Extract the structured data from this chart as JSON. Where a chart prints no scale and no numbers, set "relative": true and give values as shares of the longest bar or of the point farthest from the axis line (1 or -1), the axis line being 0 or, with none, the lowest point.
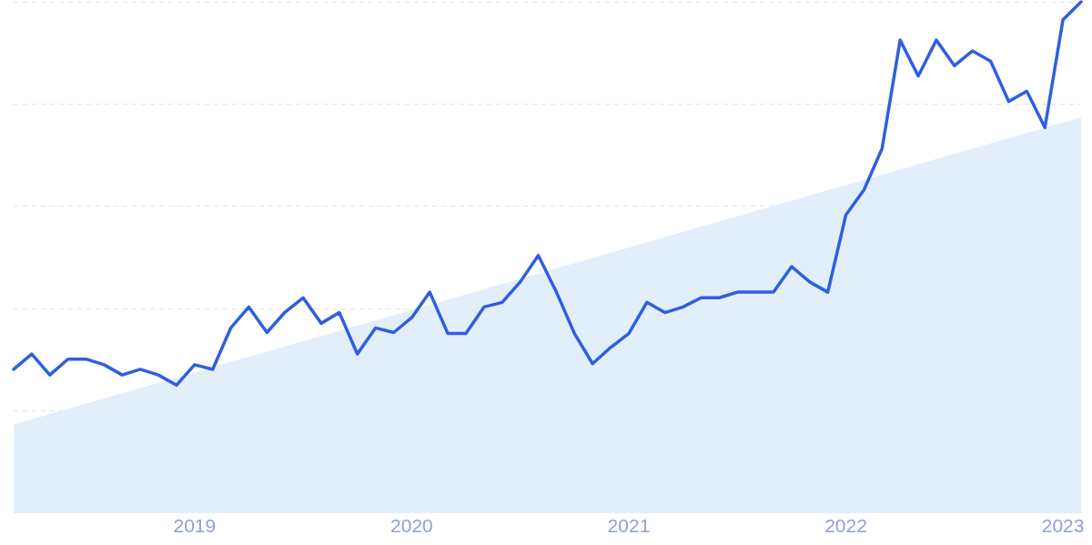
{
  "chart_data": {
    "type": "line",
    "relative": true,
    "grid": "y",
    "legend": false,
    "marker": "none",
    "line_style": "solid",
    "xlim": [
      "2018-03",
      "2023-02"
    ],
    "xticks": [
      "2019",
      "2020",
      "2021",
      "2022",
      "2023"
    ],
    "x": [
      "2018-03",
      "2018-04",
      "2018-05",
      "2018-06",
      "2018-07",
      "2018-08",
      "2018-09",
      "2018-10",
      "2018-11",
      "2018-12",
      "2019-01",
      "2019-02",
      "2019-03",
      "2019-04",
      "2019-05",
      "2019-06",
      "2019-07",
      "2019-08",
      "2019-09",
      "2019-10",
      "2019-11",
      "2019-12",
      "2020-01",
      "2020-02",
      "2020-03",
      "2020-04",
      "2020-05",
      "2020-06",
      "2020-07",
      "2020-08",
      "2020-09",
      "2020-10",
      "2020-11",
      "2020-12",
      "2021-01",
      "2021-02",
      "2021-03",
      "2021-04",
      "2021-05",
      "2021-06",
      "2021-07",
      "2021-08",
      "2021-09",
      "2021-10",
      "2021-11",
      "2021-12",
      "2022-01",
      "2022-02",
      "2022-03",
      "2022-04",
      "2022-05",
      "2022-06",
      "2022-07",
      "2022-08",
      "2022-09",
      "2022-10",
      "2022-11",
      "2022-12",
      "2023-01",
      "2023-02"
    ],
    "series": [
      {
        "type": "area",
        "color": "#e3eefb",
        "x": [
          "2018-03",
          "2023-02"
        ],
        "values": [
          0.173,
          0.774
        ]
      },
      {
        "type": "line",
        "color": "#2f5fe0",
        "values": [
          0.281,
          0.311,
          0.27,
          0.301,
          0.301,
          0.29,
          0.27,
          0.281,
          0.27,
          0.25,
          0.29,
          0.281,
          0.362,
          0.403,
          0.353,
          0.393,
          0.421,
          0.371,
          0.392,
          0.311,
          0.362,
          0.353,
          0.382,
          0.432,
          0.351,
          0.351,
          0.403,
          0.412,
          0.452,
          0.504,
          0.432,
          0.351,
          0.292,
          0.324,
          0.351,
          0.412,
          0.392,
          0.403,
          0.421,
          0.421,
          0.432,
          0.432,
          0.432,
          0.482,
          0.452,
          0.432,
          0.583,
          0.632,
          0.713,
          0.925,
          0.855,
          0.925,
          0.875,
          0.904,
          0.884,
          0.805,
          0.825,
          0.754,
          0.965,
          1
        ]
      }
    ]
  }
}
